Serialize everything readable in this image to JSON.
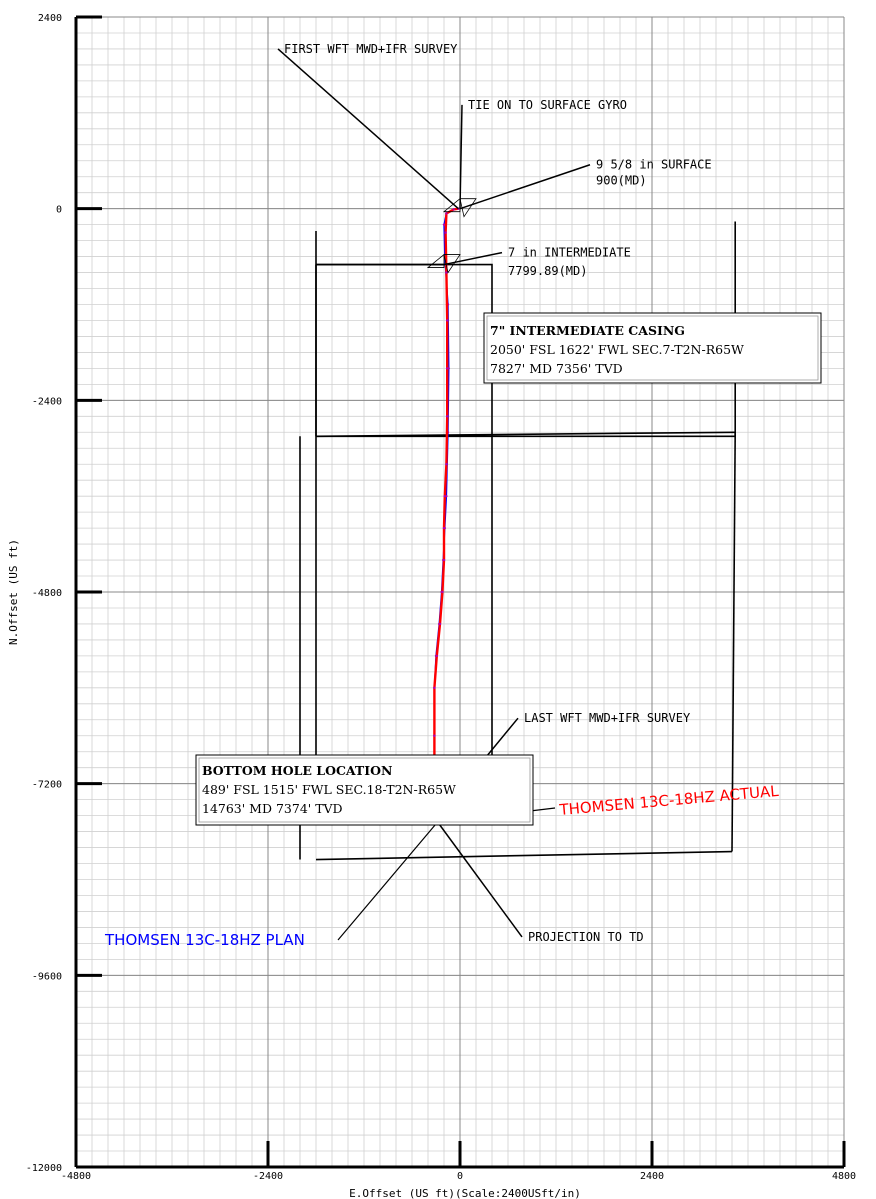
{
  "chart_data": {
    "type": "line",
    "xlabel": "E.Offset (US ft)(Scale:2400USft/in)",
    "ylabel": "N.Offset (US ft)",
    "xlim": [
      -4800,
      4800
    ],
    "ylim": [
      -12000,
      2400
    ],
    "x_ticks": [
      -4800,
      -2400,
      0,
      2400,
      4800
    ],
    "y_ticks": [
      2400,
      0,
      -2400,
      -4800,
      -7200,
      -9600,
      -12000
    ],
    "x_tick_labels": [
      "-4800",
      "-2400",
      "0",
      "2400",
      "4800"
    ],
    "y_tick_labels": [
      "2400",
      "0",
      "-2400",
      "-4800",
      "-7200",
      "-9600",
      "-12000"
    ],
    "grid": true,
    "colors": {
      "plan": "#0000ff",
      "actual": "#ff0000",
      "marker": "#b000b0",
      "grid_major": "#888888",
      "grid_minor": "#d0d0d0"
    },
    "series": [
      {
        "name": "THOMSEN 13C-18HZ PLAN",
        "color": "#0000ff",
        "x": [
          -20,
          -80,
          -170,
          -200,
          -190,
          -150,
          -140,
          -150,
          -170,
          -190,
          -210,
          -230,
          -260,
          -300,
          -320,
          -320,
          -320,
          -300
        ],
        "y": [
          0,
          -10,
          -60,
          -200,
          -600,
          -1200,
          -2000,
          -2800,
          -3600,
          -4000,
          -4400,
          -4800,
          -5200,
          -5600,
          -6000,
          -6600,
          -7200,
          -7680
        ]
      },
      {
        "name": "THOMSEN 13C-18HZ ACTUAL",
        "color": "#ff0000",
        "x": [
          -20,
          -80,
          -170,
          -180,
          -170,
          -160,
          -160,
          -160,
          -170,
          -190,
          -200,
          -200,
          -220,
          -250,
          -290,
          -320,
          -320,
          -320,
          -310,
          -280
        ],
        "y": [
          0,
          -10,
          -60,
          -300,
          -800,
          -1400,
          -2000,
          -2600,
          -3200,
          -3600,
          -4000,
          -4400,
          -4800,
          -5200,
          -5600,
          -6000,
          -6600,
          -7200,
          -7640,
          -7680
        ]
      }
    ],
    "lease_lines": [
      {
        "x": [
          -1800,
          -1800,
          400,
          400,
          -1800
        ],
        "y": [
          -700,
          -7670,
          -7670,
          -700,
          -700
        ]
      },
      {
        "x": [
          -1800,
          -200
        ],
        "y": [
          -700,
          -700
        ]
      },
      {
        "x": [
          -1800,
          3440
        ],
        "y": [
          -2850,
          -2850
        ]
      },
      {
        "x": [
          -1800,
          -1800
        ],
        "y": [
          -280,
          -2850
        ]
      },
      {
        "x": [
          3440,
          3440
        ],
        "y": [
          -160,
          -2850
        ]
      },
      {
        "x": [
          -1800,
          3440
        ],
        "y": [
          -2850,
          -2800
        ]
      },
      {
        "x": [
          -2000,
          -2000
        ],
        "y": [
          -2850,
          -8150
        ]
      },
      {
        "x": [
          3400,
          3440
        ],
        "y": [
          -8050,
          -2800
        ]
      },
      {
        "x": [
          -1800,
          3400
        ],
        "y": [
          -8150,
          -8050
        ]
      }
    ],
    "annotations": [
      {
        "text": "FIRST WFT MWD+IFR SURVEY",
        "point_x": -20,
        "point_y": 0,
        "label_x": -2200,
        "label_y": 1950
      },
      {
        "text": "TIE ON TO SURFACE GYRO",
        "point_x": 0,
        "point_y": 0,
        "label_x": 100,
        "label_y": 1250
      },
      {
        "text": "9 5/8 in SURFACE",
        "point_x": 0,
        "point_y": 0,
        "label_x": 1700,
        "label_y": 500
      },
      {
        "text": "900(MD)",
        "point_x": 0,
        "point_y": 0,
        "label_x": 1700,
        "label_y": 300
      },
      {
        "text": "7 in INTERMEDIATE",
        "point_x": -200,
        "point_y": -700,
        "label_x": 600,
        "label_y": -600
      },
      {
        "text": "7799.89(MD)",
        "point_x": -200,
        "point_y": -700,
        "label_x": 600,
        "label_y": -830
      },
      {
        "text": "LAST WFT MWD+IFR SURVEY",
        "point_x": -310,
        "point_y": -7640,
        "label_x": 800,
        "label_y": -6430
      },
      {
        "text": "PROJECTION TO TD",
        "point_x": -280,
        "point_y": -7680,
        "label_x": 850,
        "label_y": -9170
      }
    ],
    "casing_markers": [
      {
        "x": 0,
        "y": 0,
        "label": "9 5/8 in"
      },
      {
        "x": -200,
        "y": -700,
        "label": "7 in"
      }
    ],
    "info_boxes": [
      {
        "title": "7\" INTERMEDIATE CASING",
        "lines": [
          "2050' FSL 1622' FWL SEC.7-T2N-R65W",
          "7827' MD 7356' TVD"
        ]
      },
      {
        "title": "BOTTOM HOLE LOCATION",
        "lines": [
          "489' FSL 1515' FWL SEC.18-T2N-R65W",
          "14763' MD 7374' TVD"
        ]
      }
    ]
  }
}
